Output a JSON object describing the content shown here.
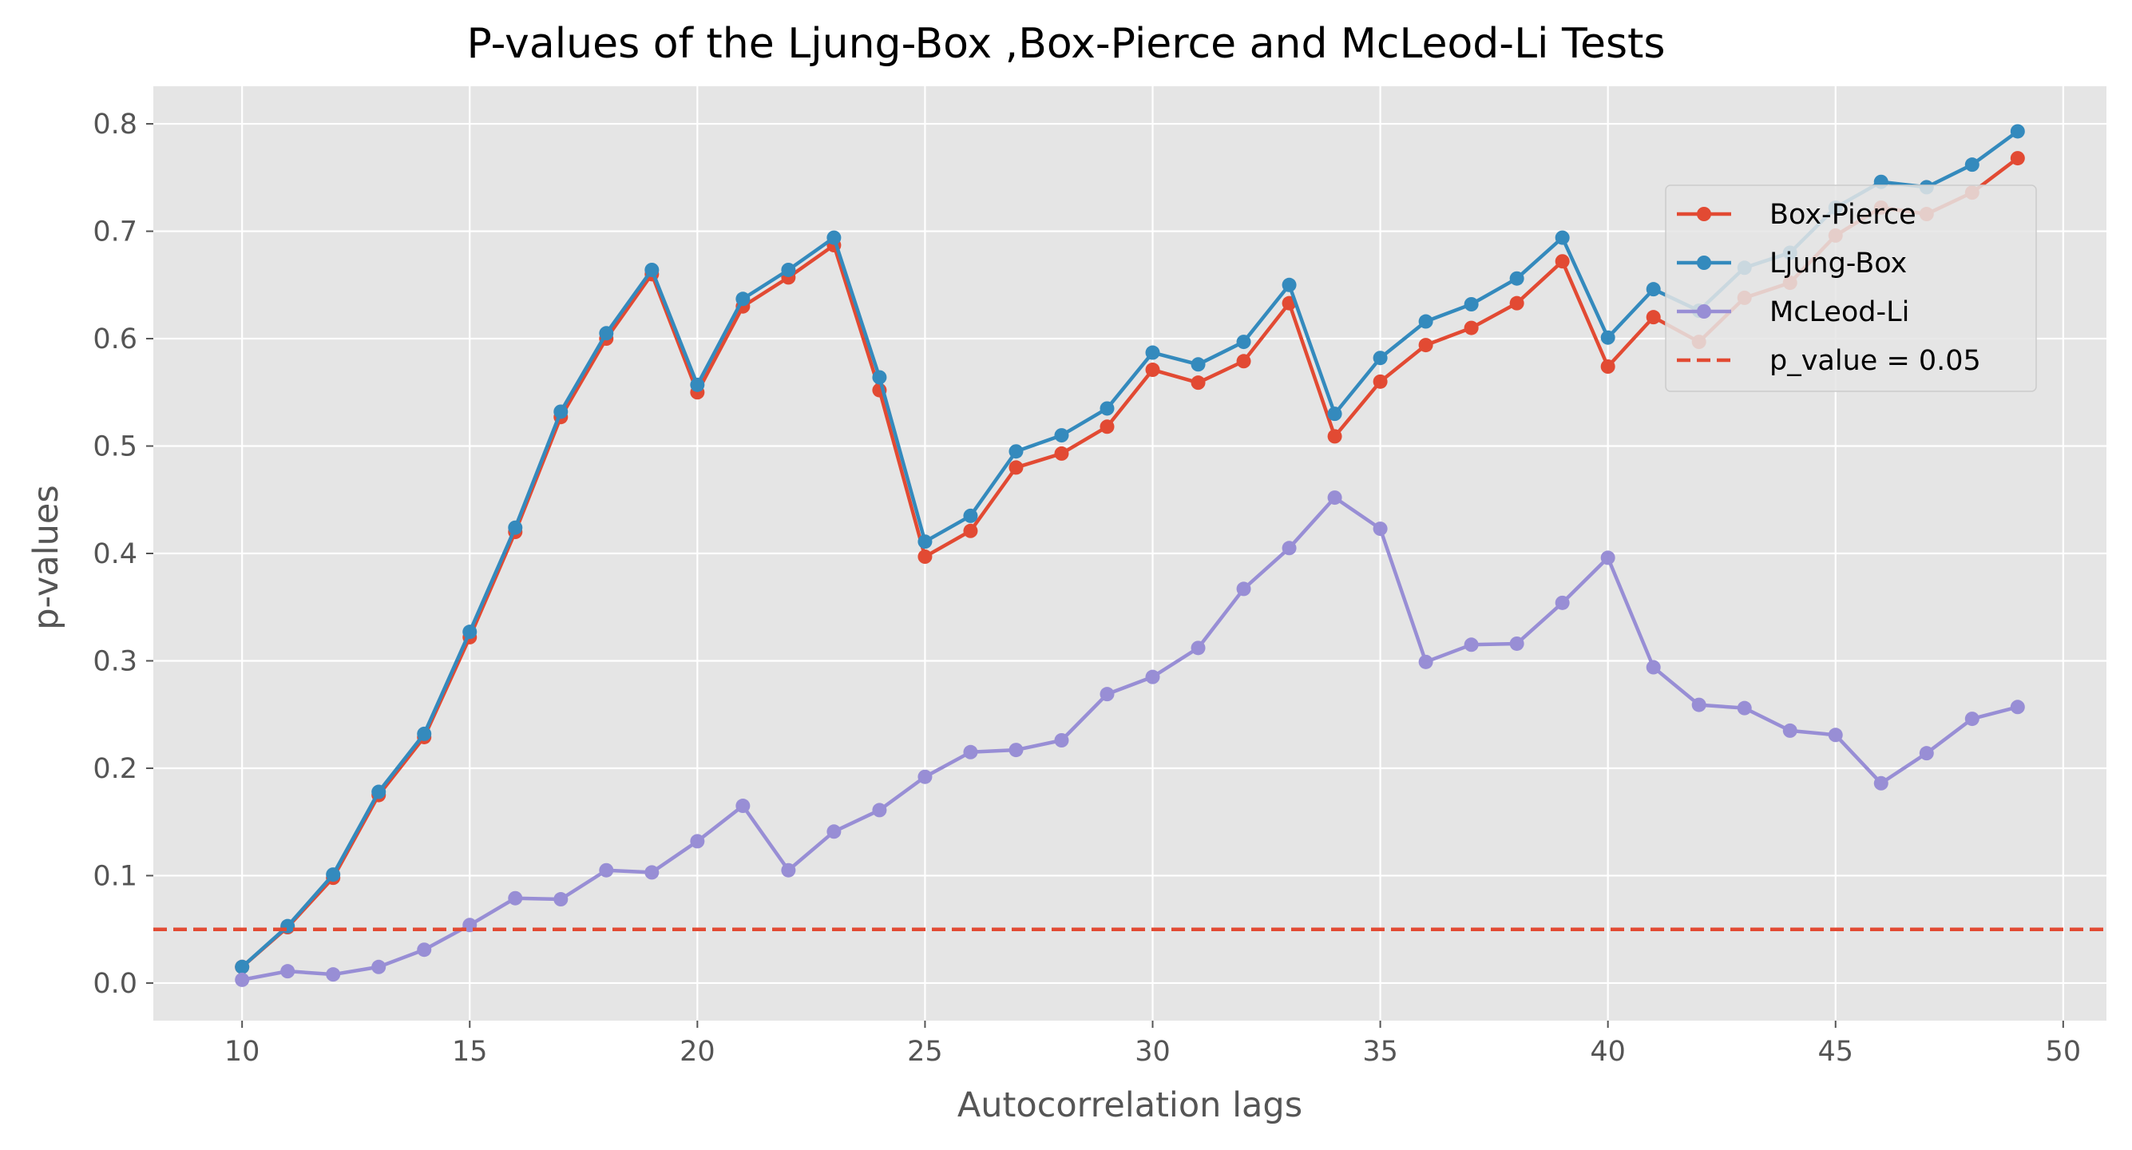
{
  "chart_data": {
    "type": "line",
    "title": "P-values of the Ljung-Box ,Box-Pierce and McLeod-Li Tests",
    "xlabel": "Autocorrelation lags",
    "ylabel": "p-values",
    "xlim": [
      8.05,
      50.95
    ],
    "ylim": [
      -0.035,
      0.835
    ],
    "xticks": [
      10,
      15,
      20,
      25,
      30,
      35,
      40,
      45,
      50
    ],
    "yticks": [
      0.0,
      0.1,
      0.2,
      0.3,
      0.4,
      0.5,
      0.6,
      0.7,
      0.8
    ],
    "grid": true,
    "legend_position": "upper right",
    "background_color": "#e5e5e5",
    "grid_color": "#ffffff",
    "x": [
      10,
      11,
      12,
      13,
      14,
      15,
      16,
      17,
      18,
      19,
      20,
      21,
      22,
      23,
      24,
      25,
      26,
      27,
      28,
      29,
      30,
      31,
      32,
      33,
      34,
      35,
      36,
      37,
      38,
      39,
      40,
      41,
      42,
      43,
      44,
      45,
      46,
      47,
      48,
      49
    ],
    "series": [
      {
        "name": "Box-Pierce",
        "color": "#e24a33",
        "style": "solid-marker",
        "values": [
          0.015,
          0.052,
          0.098,
          0.175,
          0.229,
          0.322,
          0.42,
          0.527,
          0.6,
          0.66,
          0.55,
          0.63,
          0.657,
          0.687,
          0.552,
          0.397,
          0.421,
          0.48,
          0.493,
          0.518,
          0.571,
          0.559,
          0.579,
          0.633,
          0.509,
          0.56,
          0.594,
          0.61,
          0.633,
          0.672,
          0.574,
          0.62,
          0.597,
          0.638,
          0.652,
          0.696,
          0.722,
          0.716,
          0.736,
          0.768
        ]
      },
      {
        "name": "Ljung-Box",
        "color": "#348abd",
        "style": "solid-marker",
        "values": [
          0.015,
          0.053,
          0.101,
          0.178,
          0.232,
          0.327,
          0.424,
          0.532,
          0.605,
          0.664,
          0.557,
          0.637,
          0.664,
          0.694,
          0.564,
          0.411,
          0.435,
          0.495,
          0.51,
          0.535,
          0.587,
          0.576,
          0.597,
          0.65,
          0.53,
          0.582,
          0.616,
          0.632,
          0.656,
          0.694,
          0.601,
          0.646,
          0.626,
          0.666,
          0.68,
          0.722,
          0.746,
          0.741,
          0.762,
          0.793
        ]
      },
      {
        "name": "McLeod-Li",
        "color": "#988ed5",
        "style": "solid-marker",
        "values": [
          0.003,
          0.011,
          0.008,
          0.015,
          0.031,
          0.054,
          0.079,
          0.078,
          0.105,
          0.103,
          0.132,
          0.165,
          0.105,
          0.141,
          0.161,
          0.192,
          0.215,
          0.217,
          0.226,
          0.269,
          0.285,
          0.312,
          0.367,
          0.405,
          0.452,
          0.423,
          0.299,
          0.315,
          0.316,
          0.354,
          0.396,
          0.294,
          0.259,
          0.256,
          0.235,
          0.231,
          0.186,
          0.214,
          0.246,
          0.257
        ]
      }
    ],
    "hline": {
      "name": "p_value = 0.05",
      "y": 0.05,
      "color": "#e24a33",
      "style": "dashed"
    }
  }
}
